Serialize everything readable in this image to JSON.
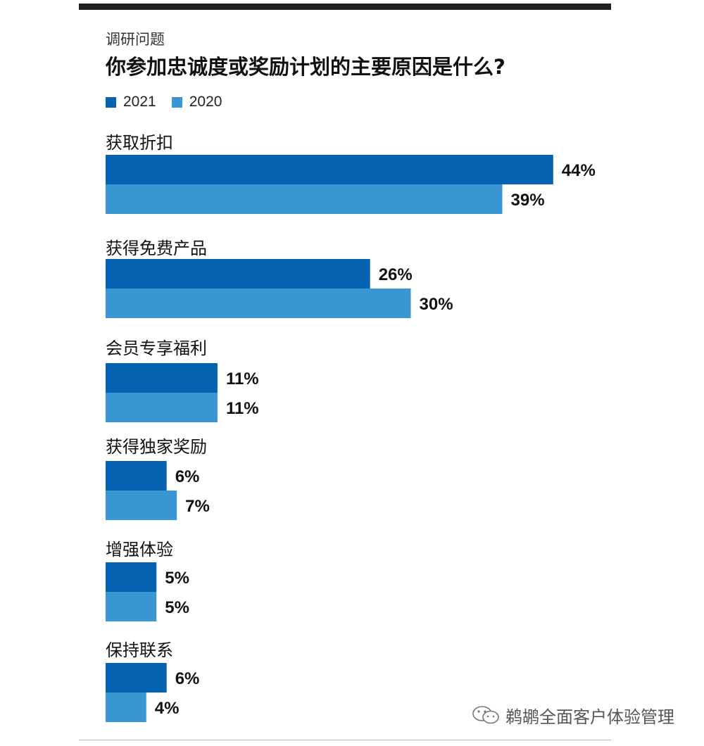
{
  "header": {
    "eyebrow": "调研问题",
    "question": "你参加忠诚度或奖励计划的主要原因是什么?"
  },
  "legend": [
    {
      "name": "2021",
      "color": "#0562b0"
    },
    {
      "name": "2020",
      "color": "#3a95d3"
    }
  ],
  "watermark": {
    "text": "鹈鹕全面客户体验管理",
    "icon": "wechat-icon"
  },
  "chart_data": {
    "type": "bar",
    "orientation": "horizontal",
    "title": "你参加忠诚度或奖励计划的主要原因是什么?",
    "categories": [
      "获取折扣",
      "获得免费产品",
      "会员专享福利",
      "获得独家奖励",
      "增强体验",
      "保持联系"
    ],
    "series": [
      {
        "name": "2021",
        "color": "#0562b0",
        "values": [
          44,
          26,
          11,
          6,
          5,
          6
        ],
        "labels": [
          "44%",
          "26%",
          "11%",
          "6%",
          "5%",
          "6%"
        ]
      },
      {
        "name": "2020",
        "color": "#3a95d3",
        "values": [
          39,
          30,
          11,
          7,
          5,
          4
        ],
        "labels": [
          "39%",
          "30%",
          "11%",
          "7%",
          "5%",
          "4%"
        ]
      }
    ],
    "unit": "%",
    "legend_position": "top-left",
    "grid": false,
    "axes_visible": false
  }
}
